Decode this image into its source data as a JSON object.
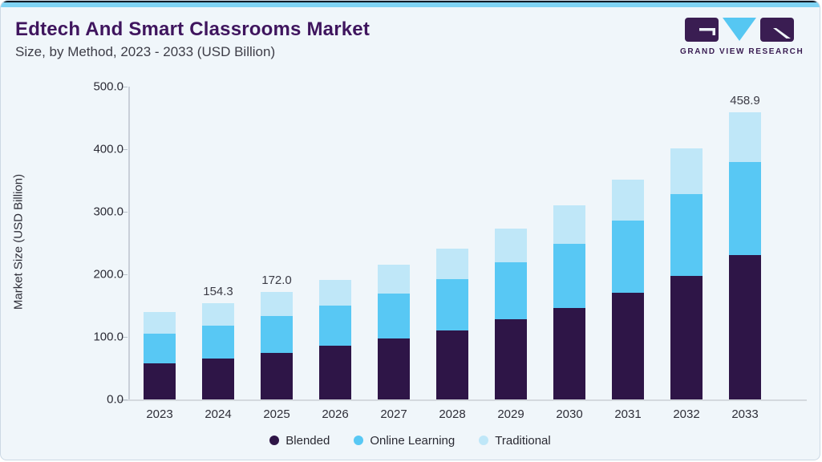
{
  "header": {
    "title": "Edtech And Smart Classrooms Market",
    "subtitle": "Size, by Method, 2023 - 2033 (USD Billion)",
    "logo_text": "GRAND VIEW RESEARCH"
  },
  "colors": {
    "blended": "#2e1547",
    "online_learning": "#58c8f4",
    "traditional": "#bfe7f8",
    "title_purple": "#3f155e",
    "logo_purple": "#3a1d52",
    "accent_strip": "#7fd3f3",
    "card_background": "#f0f6fa"
  },
  "chart_data": {
    "type": "bar",
    "stacked": true,
    "title": "Edtech And Smart Classrooms Market Size, by Method, 2023 - 2033 (USD Billion)",
    "categories": [
      "2023",
      "2024",
      "2025",
      "2026",
      "2027",
      "2028",
      "2029",
      "2030",
      "2031",
      "2032",
      "2033"
    ],
    "series": [
      {
        "name": "Blended",
        "color": "#2e1547",
        "values": [
          57.1,
          65.6,
          74.1,
          85.8,
          97.1,
          110.4,
          127.7,
          146.7,
          170.8,
          197.2,
          231.1
        ]
      },
      {
        "name": "Online Learning",
        "color": "#58c8f4",
        "values": [
          48.5,
          52.9,
          58.9,
          64.2,
          72.6,
          81.5,
          91.7,
          102.1,
          115.6,
          131.5,
          148.2
        ]
      },
      {
        "name": "Traditional",
        "color": "#bfe7f8",
        "values": [
          33.9,
          35.8,
          39.0,
          41.5,
          45.2,
          49.6,
          53.6,
          61.4,
          65.3,
          72.3,
          79.6
        ]
      }
    ],
    "totals_shown": {
      "2024": "154.3",
      "2025": "172.0",
      "2033": "458.9"
    },
    "ylabel": "Market Size (USD Billion)",
    "xlabel": "",
    "ylim": [
      0,
      500
    ],
    "yticks": [
      "0.0",
      "100.0",
      "200.0",
      "300.0",
      "400.0",
      "500.0"
    ],
    "legend_position": "bottom",
    "grid": false
  }
}
